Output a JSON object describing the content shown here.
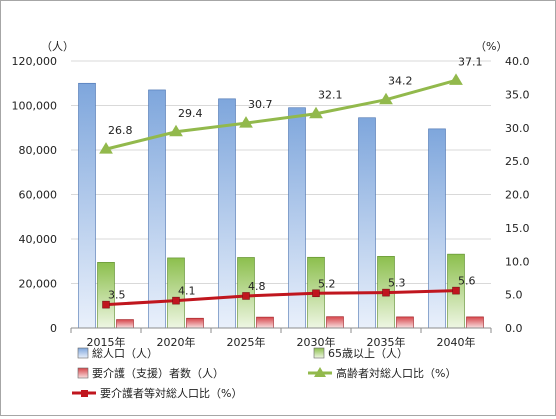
{
  "chart_data": {
    "type": "bar",
    "categories": [
      "2015年",
      "2020年",
      "2025年",
      "2030年",
      "2035年",
      "2040年"
    ],
    "y_left": {
      "unit_label": "（人）",
      "range": [
        0,
        120000
      ],
      "ticks": [
        "0",
        "20,000",
        "40,000",
        "60,000",
        "80,000",
        "100,000",
        "120,000"
      ]
    },
    "y_right": {
      "unit_label": "（%）",
      "range": [
        0,
        40
      ],
      "ticks": [
        "0.0",
        "5.0",
        "10.0",
        "15.0",
        "20.0",
        "25.0",
        "30.0",
        "35.0",
        "40.0"
      ]
    },
    "series": [
      {
        "name": "総人口（人）",
        "kind": "bar",
        "axis": "left",
        "color": "#7ea6dc",
        "values": [
          110000,
          107000,
          103000,
          99000,
          94500,
          89500
        ]
      },
      {
        "name": "65歳以上（人）",
        "kind": "bar",
        "axis": "left",
        "color": "#8cbf4d",
        "values": [
          29500,
          31500,
          31700,
          31800,
          32200,
          33200
        ]
      },
      {
        "name": "要介護（支援）者数（人）",
        "kind": "bar",
        "axis": "left",
        "color": "#d6454a",
        "values": [
          3800,
          4400,
          4900,
          5100,
          5000,
          5000
        ]
      },
      {
        "name": "高齢者対総人口比（%）",
        "kind": "line",
        "axis": "right",
        "color": "#92b94c",
        "marker": "triangle",
        "values": [
          26.8,
          29.4,
          30.7,
          32.1,
          34.2,
          37.1
        ],
        "labels": [
          "26.8",
          "29.4",
          "30.7",
          "32.1",
          "34.2",
          "37.1"
        ]
      },
      {
        "name": "要介護者等対総人口比（%）",
        "kind": "line",
        "axis": "right",
        "color": "#c0161e",
        "marker": "square",
        "values": [
          3.5,
          4.1,
          4.8,
          5.2,
          5.3,
          5.6
        ],
        "labels": [
          "3.5",
          "4.1",
          "4.8",
          "5.2",
          "5.3",
          "5.6"
        ]
      }
    ],
    "legend_position": "bottom",
    "grid": "horizontal"
  }
}
